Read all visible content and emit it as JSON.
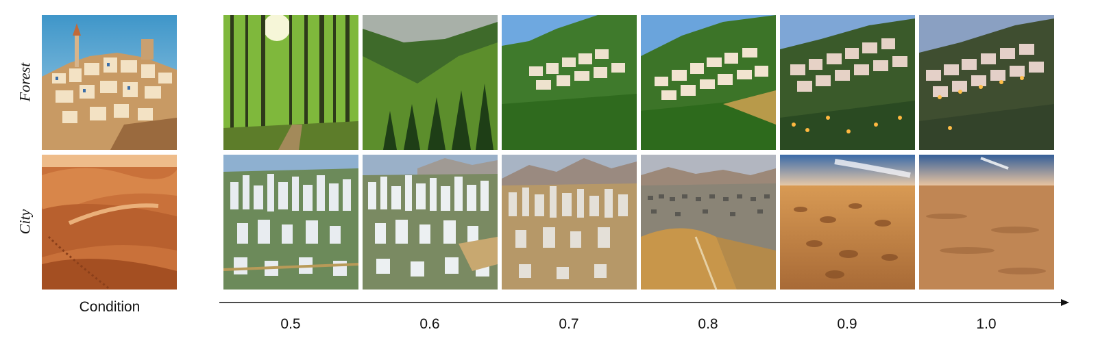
{
  "rows": {
    "forest_label": "Forest",
    "city_label": "City"
  },
  "condition_caption": "Condition",
  "axis_ticks": [
    "0.5",
    "0.6",
    "0.7",
    "0.8",
    "0.9",
    "1.0"
  ],
  "colors": {
    "sky_blue": "#5aa8d8",
    "forest_green": "#4b8a2a",
    "sand": "#d88a48",
    "village_white": "#f1e6d2",
    "night_light": "#f0a030"
  }
}
